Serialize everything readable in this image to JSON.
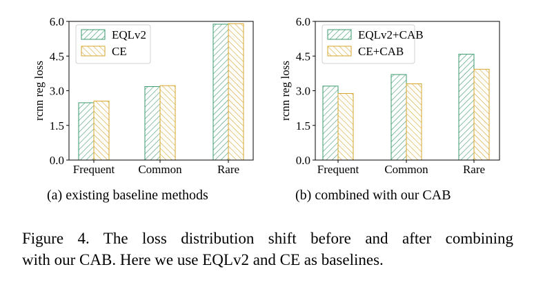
{
  "colors": {
    "eqlv2": "#3a9a6c",
    "ce": "#d4a52a",
    "axis": "#000000"
  },
  "chart_data": [
    {
      "type": "bar",
      "panel": "a",
      "categories": [
        "Frequent",
        "Common",
        "Rare"
      ],
      "series": [
        {
          "name": "EQLv2",
          "values": [
            2.48,
            3.18,
            5.88
          ]
        },
        {
          "name": "CE",
          "values": [
            2.55,
            3.22,
            5.9
          ]
        }
      ],
      "ylabel": "rcnn reg loss",
      "ylim": [
        0,
        6.0
      ],
      "yticks": [
        "0.0",
        "1.5",
        "3.0",
        "4.5",
        "6.0"
      ],
      "ytick_values": [
        0,
        1.5,
        3.0,
        4.5,
        6.0
      ],
      "legend": "top-left",
      "grid": false
    },
    {
      "type": "bar",
      "panel": "b",
      "categories": [
        "Frequent",
        "Common",
        "Rare"
      ],
      "series": [
        {
          "name": "EQLv2+CAB",
          "values": [
            3.2,
            3.7,
            4.58
          ]
        },
        {
          "name": "CE+CAB",
          "values": [
            2.88,
            3.3,
            3.93
          ]
        }
      ],
      "ylabel": "rcnn reg loss",
      "ylim": [
        0,
        6.0
      ],
      "yticks": [
        "0.0",
        "1.5",
        "3.0",
        "4.5",
        "6.0"
      ],
      "ytick_values": [
        0,
        1.5,
        3.0,
        4.5,
        6.0
      ],
      "legend": "top-left",
      "grid": false
    }
  ],
  "subcaptions": {
    "a": "(a) existing baseline methods",
    "b": "(b) combined with our CAB"
  },
  "caption": {
    "line1": "Figure 4.  The loss distribution shift before and after combining",
    "line2": "with our CAB. Here we use EQLv2 and CE as baselines."
  }
}
